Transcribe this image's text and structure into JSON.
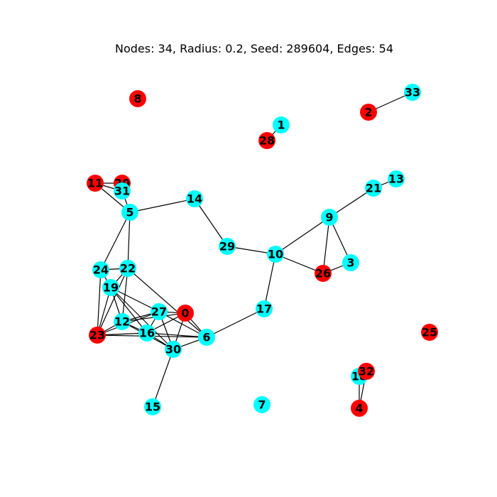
{
  "title": "Nodes: 34, Radius: 0.2, Seed: 289604, Edges: 54",
  "colors": {
    "red": "#ff0000",
    "cyan": "#00ffff"
  },
  "nodes": [
    {
      "id": "0",
      "color": "red"
    },
    {
      "id": "1",
      "color": "cyan"
    },
    {
      "id": "2",
      "color": "red"
    },
    {
      "id": "3",
      "color": "cyan"
    },
    {
      "id": "4",
      "color": "red"
    },
    {
      "id": "5",
      "color": "cyan"
    },
    {
      "id": "6",
      "color": "cyan"
    },
    {
      "id": "7",
      "color": "cyan"
    },
    {
      "id": "8",
      "color": "red"
    },
    {
      "id": "9",
      "color": "cyan"
    },
    {
      "id": "10",
      "color": "cyan"
    },
    {
      "id": "11",
      "color": "red"
    },
    {
      "id": "12",
      "color": "cyan"
    },
    {
      "id": "13",
      "color": "cyan"
    },
    {
      "id": "14",
      "color": "cyan"
    },
    {
      "id": "15",
      "color": "cyan"
    },
    {
      "id": "16",
      "color": "cyan"
    },
    {
      "id": "17",
      "color": "cyan"
    },
    {
      "id": "18",
      "color": "cyan"
    },
    {
      "id": "19",
      "color": "cyan"
    },
    {
      "id": "20",
      "color": "red"
    },
    {
      "id": "21",
      "color": "cyan"
    },
    {
      "id": "22",
      "color": "cyan"
    },
    {
      "id": "23",
      "color": "red"
    },
    {
      "id": "24",
      "color": "cyan"
    },
    {
      "id": "25",
      "color": "red"
    },
    {
      "id": "26",
      "color": "red"
    },
    {
      "id": "27",
      "color": "cyan"
    },
    {
      "id": "28",
      "color": "red"
    },
    {
      "id": "29",
      "color": "cyan"
    },
    {
      "id": "30",
      "color": "cyan"
    },
    {
      "id": "31",
      "color": "cyan"
    },
    {
      "id": "32",
      "color": "red"
    },
    {
      "id": "33",
      "color": "cyan"
    }
  ],
  "edges": [
    [
      "2",
      "33"
    ],
    [
      "1",
      "28"
    ],
    [
      "21",
      "13"
    ],
    [
      "21",
      "9"
    ],
    [
      "9",
      "10"
    ],
    [
      "9",
      "26"
    ],
    [
      "9",
      "3"
    ],
    [
      "26",
      "3"
    ],
    [
      "10",
      "26"
    ],
    [
      "29",
      "10"
    ],
    [
      "14",
      "29"
    ],
    [
      "5",
      "14"
    ],
    [
      "10",
      "17"
    ],
    [
      "17",
      "6"
    ],
    [
      "11",
      "20"
    ],
    [
      "11",
      "31"
    ],
    [
      "11",
      "5"
    ],
    [
      "20",
      "31"
    ],
    [
      "31",
      "5"
    ],
    [
      "5",
      "24"
    ],
    [
      "5",
      "22"
    ],
    [
      "24",
      "22"
    ],
    [
      "24",
      "23"
    ],
    [
      "24",
      "19"
    ],
    [
      "22",
      "23"
    ],
    [
      "22",
      "19"
    ],
    [
      "22",
      "12"
    ],
    [
      "22",
      "6"
    ],
    [
      "19",
      "23"
    ],
    [
      "19",
      "12"
    ],
    [
      "19",
      "16"
    ],
    [
      "19",
      "27"
    ],
    [
      "19",
      "30"
    ],
    [
      "23",
      "12"
    ],
    [
      "23",
      "16"
    ],
    [
      "23",
      "27"
    ],
    [
      "23",
      "6"
    ],
    [
      "12",
      "16"
    ],
    [
      "12",
      "27"
    ],
    [
      "12",
      "0"
    ],
    [
      "12",
      "30"
    ],
    [
      "16",
      "27"
    ],
    [
      "16",
      "0"
    ],
    [
      "16",
      "6"
    ],
    [
      "16",
      "30"
    ],
    [
      "27",
      "0"
    ],
    [
      "27",
      "6"
    ],
    [
      "27",
      "30"
    ],
    [
      "0",
      "6"
    ],
    [
      "0",
      "30"
    ],
    [
      "30",
      "6"
    ],
    [
      "30",
      "15"
    ],
    [
      "18",
      "4"
    ],
    [
      "32",
      "4"
    ]
  ]
}
